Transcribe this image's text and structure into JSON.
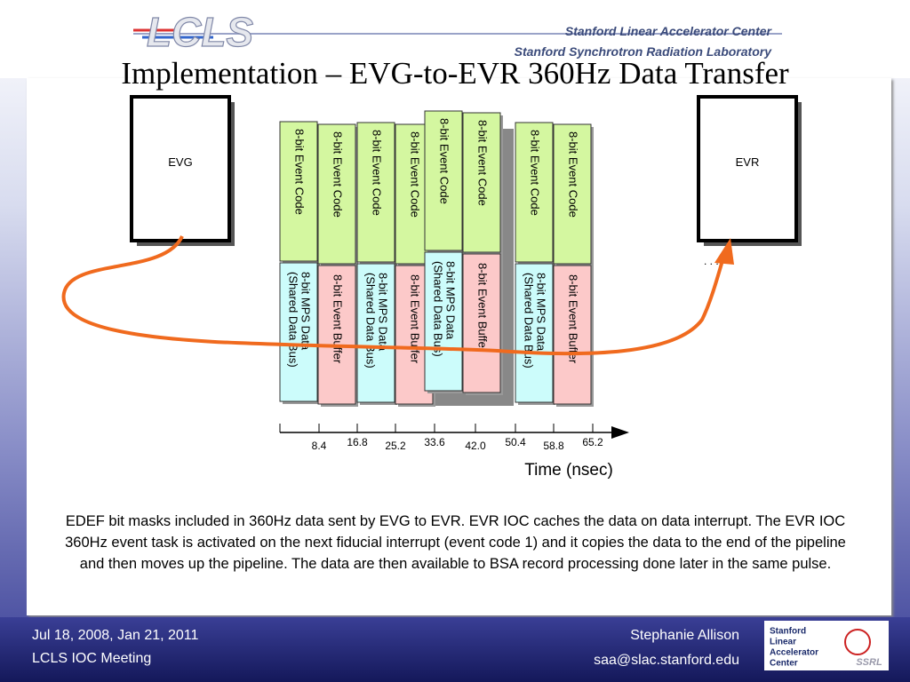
{
  "header": {
    "logo": "LCLS",
    "org1": "Stanford Linear Accelerator Center",
    "org2": "Stanford Synchrotron Radiation Laboratory"
  },
  "title": "Implementation – EVG-to-EVR 360Hz Data Transfer",
  "diagram": {
    "evg": "EVG",
    "evr": "EVR",
    "ellipsis": ". . .",
    "columns": [
      {
        "top": "8-bit Event Code",
        "bottom": [
          "8-bit MPS Data",
          "(Shared Data Bus)"
        ]
      },
      {
        "top": "8-bit Event Code",
        "bottom": [
          "8-bit Event Buffer"
        ]
      },
      {
        "top": "8-bit Event Code",
        "bottom": [
          "8-bit MPS Data",
          "(Shared Data Bus)"
        ]
      },
      {
        "top": "8-bit Event Code",
        "bottom": [
          "8-bit Event Buffer"
        ]
      },
      {
        "top": "8-bit Event Code",
        "bottom": [
          "8-bit MPS Data",
          "(Shared Data Bus)"
        ]
      },
      {
        "top": "8-bit Event Code",
        "bottom": [
          "8-bit Event Buffer"
        ]
      },
      {
        "top": "8-bit Event Code",
        "bottom": [
          "8-bit MPS Data",
          "(Shared Data Bus)"
        ]
      },
      {
        "top": "8-bit Event Code",
        "bottom": [
          "8-bit Event Buffer"
        ]
      }
    ],
    "axis": {
      "ticks": [
        "8.4",
        "16.8",
        "25.2",
        "33.6",
        "42.0",
        "50.4",
        "58.8",
        "65.2"
      ],
      "label": "Time (nsec)"
    }
  },
  "body": "EDEF bit masks included in 360Hz data sent by EVG to EVR.  EVR IOC caches the data on data interrupt.  The EVR IOC 360Hz event task is activated on the next fiducial interrupt (event code 1) and it copies the data to the end of the pipeline and then moves up the pipeline.  The data are then available to BSA record processing done later in the same pulse.",
  "footer": {
    "dates": "Jul 18, 2008, Jan 21, 2011",
    "meeting": "LCLS IOC Meeting",
    "author": "Stephanie Allison",
    "email": "saa@slac.stanford.edu",
    "logo": [
      "Stanford",
      "Linear",
      "Accelerator",
      "Center"
    ],
    "ssrl": "SSRL"
  }
}
